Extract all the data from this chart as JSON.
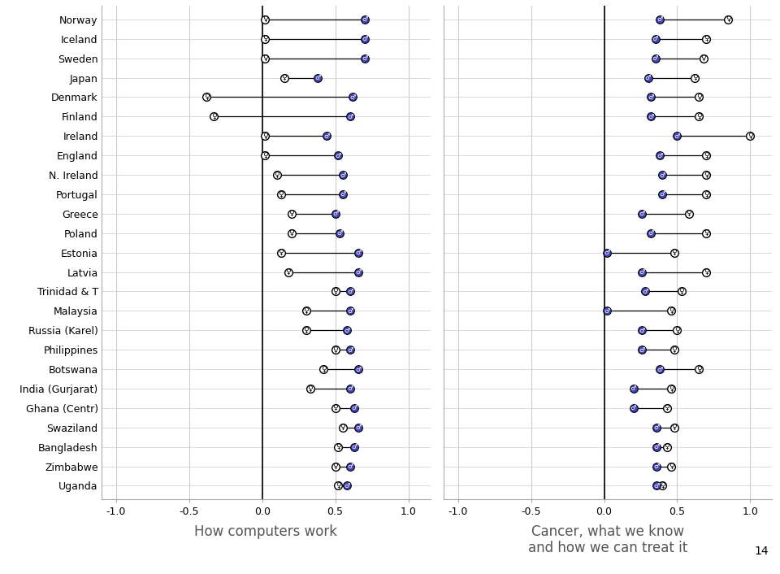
{
  "countries": [
    "Norway",
    "Iceland",
    "Sweden",
    "Japan",
    "Denmark",
    "Finland",
    "Ireland",
    "England",
    "N. Ireland",
    "Portugal",
    "Greece",
    "Poland",
    "Estonia",
    "Latvia",
    "Trinidad & T",
    "Malaysia",
    "Russia (Karel)",
    "Philippines",
    "Botswana",
    "India (Gurjarat)",
    "Ghana (Centr)",
    "Swaziland",
    "Bangladesh",
    "Zimbabwe",
    "Uganda"
  ],
  "chart1": {
    "title": "How computers work",
    "female": [
      0.02,
      0.02,
      0.02,
      0.15,
      -0.38,
      -0.33,
      0.02,
      0.02,
      0.1,
      0.13,
      0.2,
      0.2,
      0.13,
      0.18,
      0.5,
      0.3,
      0.3,
      0.5,
      0.42,
      0.33,
      0.5,
      0.55,
      0.52,
      0.5,
      0.52
    ],
    "male": [
      0.7,
      0.7,
      0.7,
      0.38,
      0.62,
      0.6,
      0.44,
      0.52,
      0.55,
      0.55,
      0.5,
      0.53,
      0.66,
      0.66,
      0.6,
      0.6,
      0.58,
      0.6,
      0.66,
      0.6,
      0.63,
      0.66,
      0.63,
      0.6,
      0.58
    ]
  },
  "chart2": {
    "title": "Cancer, what we know\nand how we can treat it",
    "male": [
      0.38,
      0.35,
      0.35,
      0.3,
      0.32,
      0.32,
      0.5,
      0.38,
      0.4,
      0.4,
      0.26,
      0.32,
      0.02,
      0.26,
      0.28,
      0.02,
      0.26,
      0.26,
      0.38,
      0.2,
      0.2,
      0.36,
      0.36,
      0.36,
      0.36
    ],
    "female": [
      0.85,
      0.7,
      0.68,
      0.62,
      0.65,
      0.65,
      1.0,
      0.7,
      0.7,
      0.7,
      0.58,
      0.7,
      0.48,
      0.7,
      0.53,
      0.46,
      0.5,
      0.48,
      0.65,
      0.46,
      0.43,
      0.48,
      0.43,
      0.46,
      0.4
    ]
  },
  "female_color": "white",
  "male_color": "#4444bb",
  "marker_size": 7,
  "xlim": [
    -1.1,
    1.15
  ],
  "xticks": [
    -1.0,
    -0.5,
    0.0,
    0.5,
    1.0
  ],
  "page_number": "14",
  "bg_color": "white",
  "grid_color": "#cccccc"
}
